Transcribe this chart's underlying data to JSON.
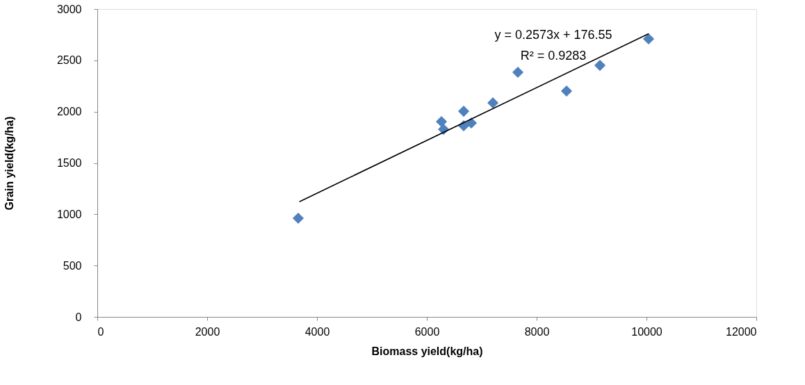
{
  "chart_data": {
    "type": "scatter",
    "xlabel": "Biomass yield(kg/ha)",
    "ylabel": "Grain yield(kg/ha)",
    "xlim": [
      0,
      12000
    ],
    "xticks": [
      0,
      2000,
      4000,
      6000,
      8000,
      10000,
      12000
    ],
    "ylim": [
      0,
      3000
    ],
    "yticks": [
      0,
      500,
      1000,
      1500,
      2000,
      2500,
      3000
    ],
    "grid": false,
    "legend": false,
    "series": [
      {
        "type": "scatter",
        "color": "#4f81bd",
        "marker": "diamond",
        "x": [
          3658,
          6266,
          6304,
          6671,
          6671,
          6810,
          7203,
          7658,
          8544,
          9152,
          10038
        ],
        "values": [
          962,
          1903,
          1828,
          2004,
          1862,
          1889,
          2086,
          2384,
          2201,
          2451,
          2709
        ]
      },
      {
        "type": "line",
        "color": "#000000",
        "line_style": "solid",
        "x": [
          3680,
          10040
        ],
        "values": [
          1123,
          2760
        ]
      }
    ],
    "annotations": [
      "y = 0.2573x + 176.55",
      "R² = 0.9283"
    ]
  }
}
